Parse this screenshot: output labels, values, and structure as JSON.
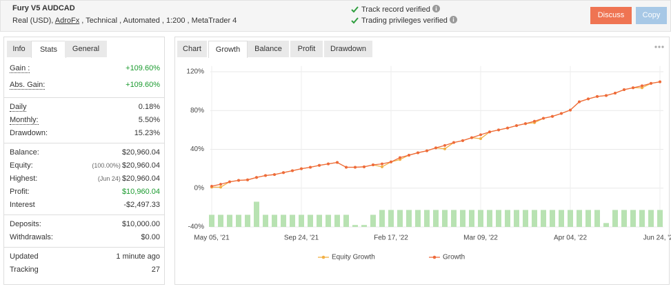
{
  "header": {
    "title": "Fury V5 AUDCAD",
    "account": [
      "Real (USD), ",
      "AdroFx",
      " , Technical , Automated , 1:200 , MetaTrader 4"
    ],
    "verified": [
      "Track record verified",
      "Trading privileges verified"
    ],
    "buttons": [
      "Discuss",
      "Copy"
    ]
  },
  "left_tabs": {
    "items": [
      "Info",
      "Stats",
      "General"
    ],
    "active": 1
  },
  "stats": {
    "groups": [
      [
        {
          "label": "Gain :",
          "value": "+109.60%",
          "color": "#1a9a2e",
          "dotted": true
        },
        {
          "label": "Abs. Gain:",
          "value": "+109.60%",
          "color": "#1a9a2e",
          "dotted": true
        }
      ],
      [
        {
          "label": "Daily",
          "value": "0.18%",
          "dotted": true
        },
        {
          "label": "Monthly:",
          "value": "5.50%",
          "dotted": true
        },
        {
          "label": "Drawdown:",
          "value": "15.23%"
        }
      ],
      [
        {
          "label": "Balance:",
          "value": "$20,960.04"
        },
        {
          "label": "Equity:",
          "note": "(100.00%)",
          "value": "$20,960.04"
        },
        {
          "label": "Highest:",
          "note": "(Jun 24)",
          "value": "$20,960.04"
        },
        {
          "label": "Profit:",
          "value": "$10,960.04",
          "color": "#1a9a2e"
        },
        {
          "label": "Interest",
          "value": "-$2,497.33"
        }
      ],
      [
        {
          "label": "Deposits:",
          "value": "$10,000.00"
        },
        {
          "label": "Withdrawals:",
          "value": "$0.00"
        }
      ],
      [
        {
          "label": "Updated",
          "value": "1 minute ago"
        },
        {
          "label": "Tracking",
          "value": "27"
        }
      ]
    ]
  },
  "chart_tabs": {
    "items": [
      "Chart",
      "Growth",
      "Balance",
      "Profit",
      "Drawdown"
    ],
    "active": 1
  },
  "chart_data": {
    "type": "line",
    "categories": [
      "May 05, '21",
      null,
      null,
      null,
      null,
      null,
      null,
      null,
      null,
      null,
      "Sep 24, '21",
      null,
      null,
      null,
      null,
      null,
      null,
      null,
      null,
      null,
      "Feb 17, '22",
      null,
      null,
      null,
      null,
      null,
      null,
      null,
      null,
      null,
      "Mar 09, '22",
      null,
      null,
      null,
      null,
      null,
      null,
      null,
      null,
      null,
      "Apr 04, '22",
      null,
      null,
      null,
      null,
      null,
      null,
      null,
      null,
      null,
      "Jun 24, '22"
    ],
    "series": [
      {
        "name": "Equity Growth",
        "color": "#f2b045",
        "values": [
          1,
          1,
          6.5,
          8,
          8.5,
          11,
          13,
          14,
          16,
          18,
          20,
          21.5,
          23.5,
          25,
          26.5,
          21.5,
          21.5,
          22,
          24,
          22,
          27,
          29.5,
          34,
          36.5,
          38.5,
          41.5,
          40.5,
          47,
          49,
          52,
          51,
          58,
          60,
          62,
          64.5,
          66.5,
          67.5,
          72,
          74,
          77,
          80.5,
          89,
          92,
          94.5,
          95.5,
          98,
          101.5,
          103.5,
          103.5,
          108,
          109.6
        ]
      },
      {
        "name": "Growth",
        "color": "#ee6a3b",
        "values": [
          2,
          4,
          6.5,
          8,
          8.5,
          11,
          13,
          14,
          16,
          18,
          20,
          21.5,
          23.5,
          25,
          26.5,
          21.5,
          21.5,
          22,
          24,
          25,
          27,
          31.5,
          34,
          36.5,
          38.5,
          41.5,
          44,
          47,
          49,
          52,
          55,
          58,
          60,
          62,
          64.5,
          66.5,
          69,
          72,
          74,
          77,
          80.5,
          89,
          92,
          94.5,
          95.5,
          98,
          101.5,
          103.5,
          105.5,
          108,
          109.6
        ]
      }
    ],
    "bars": {
      "color": "#b8e2b2",
      "values": [
        -27.5,
        -27.5,
        -27.5,
        -27.5,
        -27.5,
        -14,
        -27.5,
        -27.5,
        -27.5,
        -27.5,
        -27.5,
        -27.5,
        -27.5,
        -27.5,
        -27.5,
        -27.5,
        -38,
        -38,
        -27.5,
        -22.5,
        -22.5,
        -22.5,
        -22.5,
        -22.5,
        -22.5,
        -22.5,
        -22.5,
        -22.5,
        -22.5,
        -22.5,
        -22.5,
        -22.5,
        -22.5,
        -22.5,
        -22.5,
        -22.5,
        -22.5,
        -22.5,
        -22.5,
        -22.5,
        -22.5,
        -22.5,
        -22.5,
        -22.5,
        -36,
        -22.5,
        -22.5,
        -22.5,
        -22.5,
        -22.5,
        -22.5
      ]
    },
    "ylim": [
      -40,
      126
    ],
    "yticks": [
      {
        "value": -40,
        "label": "-40%"
      },
      {
        "value": 0,
        "label": "0%"
      },
      {
        "value": 40,
        "label": "40%"
      },
      {
        "value": 80,
        "label": "80%"
      },
      {
        "value": 120,
        "label": "120%"
      }
    ],
    "grid": true
  }
}
